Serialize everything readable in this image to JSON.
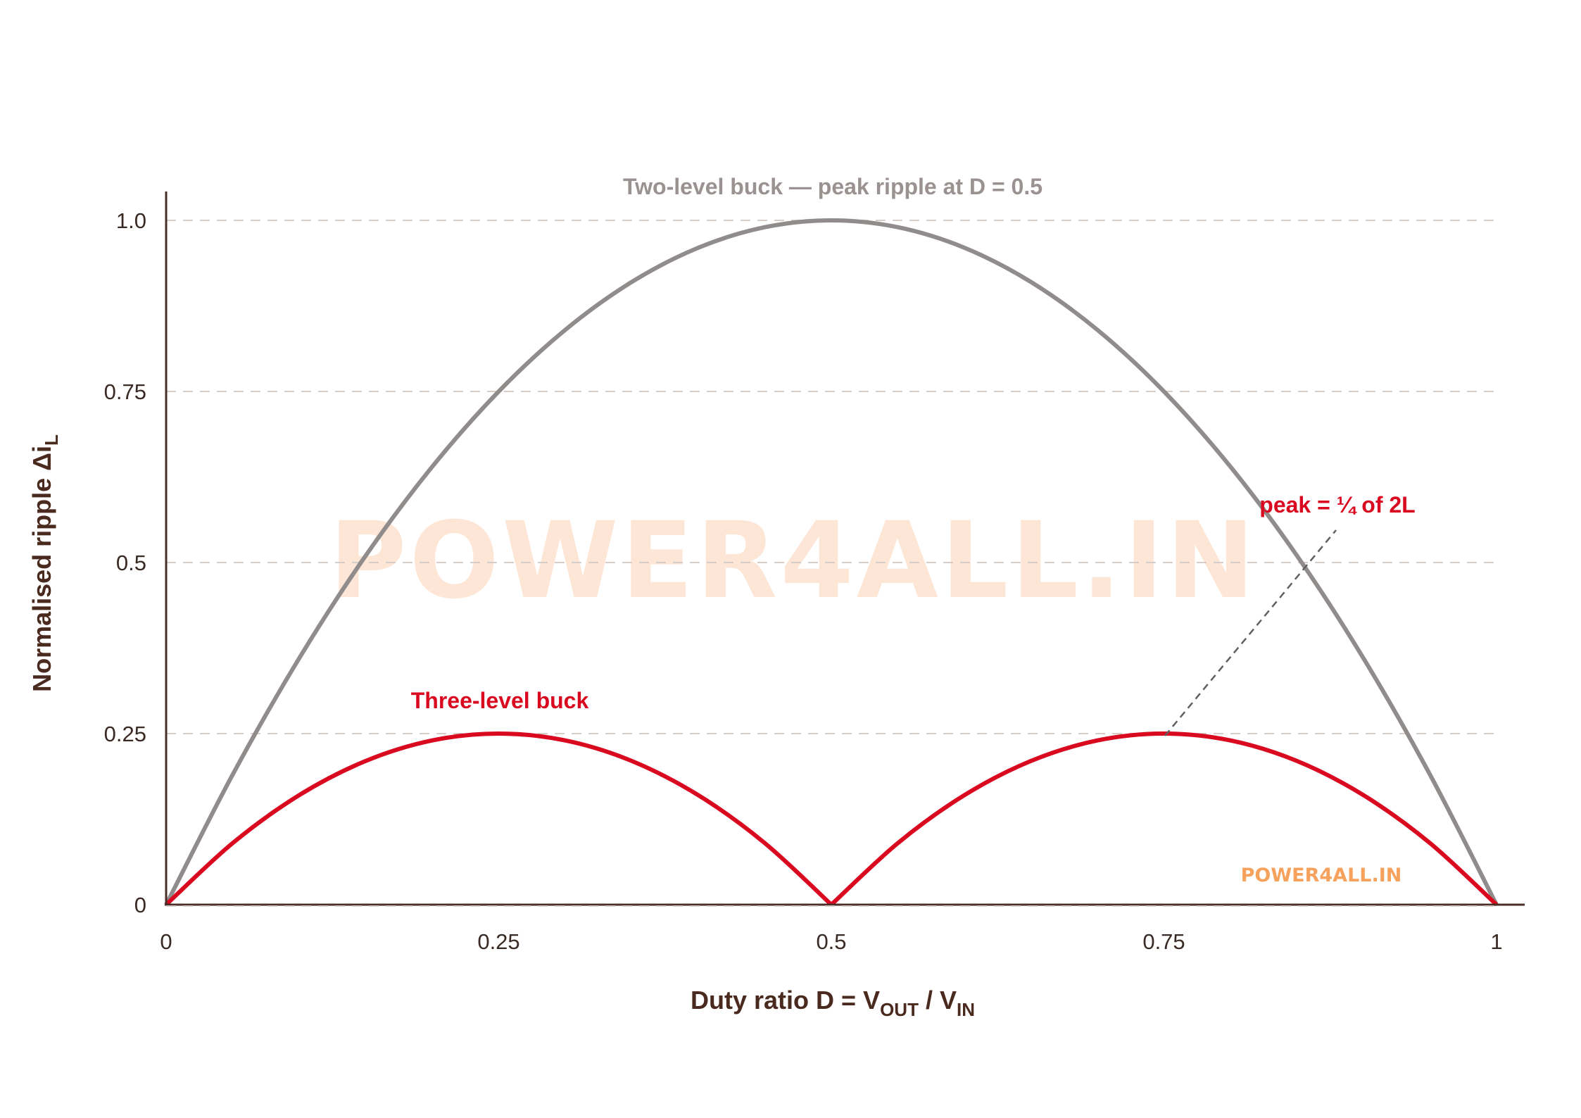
{
  "chart_data": {
    "type": "line",
    "xlabel_main": "Duty ratio D = V",
    "xlabel_sub1": "OUT",
    "xlabel_mid": " / V",
    "xlabel_sub2": "IN",
    "ylabel_main": "Normalised ripple Δi",
    "ylabel_sub": "L",
    "xlim": [
      0,
      1
    ],
    "ylim": [
      0,
      1
    ],
    "x_ticks": [
      0,
      0.25,
      0.5,
      0.75,
      1
    ],
    "x_tick_labels": [
      "0",
      "0.25",
      "0.5",
      "0.75",
      "1"
    ],
    "y_ticks": [
      0,
      0.25,
      0.5,
      0.75,
      1.0
    ],
    "y_tick_labels": [
      "0",
      "0.25",
      "0.5",
      "0.75",
      "1.0"
    ],
    "grid": "horizontal dashed",
    "series": [
      {
        "name": "Two-level buck",
        "color": "#8f8c8b",
        "x": [
          0,
          0.05,
          0.1,
          0.15,
          0.2,
          0.25,
          0.3,
          0.35,
          0.4,
          0.45,
          0.5,
          0.55,
          0.6,
          0.65,
          0.7,
          0.75,
          0.8,
          0.85,
          0.9,
          0.95,
          1
        ],
        "y": [
          0,
          0.19,
          0.36,
          0.51,
          0.64,
          0.75,
          0.84,
          0.91,
          0.96,
          0.99,
          1.0,
          0.99,
          0.96,
          0.91,
          0.84,
          0.75,
          0.64,
          0.51,
          0.36,
          0.19,
          0
        ]
      },
      {
        "name": "Three-level buck",
        "color": "#d9091f",
        "x": [
          0,
          0.05,
          0.1,
          0.15,
          0.2,
          0.25,
          0.3,
          0.35,
          0.4,
          0.45,
          0.5,
          0.55,
          0.6,
          0.65,
          0.7,
          0.75,
          0.8,
          0.85,
          0.9,
          0.95,
          1
        ],
        "y": [
          0,
          0.09,
          0.16,
          0.21,
          0.24,
          0.25,
          0.24,
          0.21,
          0.16,
          0.09,
          0,
          0.09,
          0.16,
          0.21,
          0.24,
          0.25,
          0.24,
          0.21,
          0.16,
          0.09,
          0
        ]
      }
    ],
    "annotations": {
      "two_level_label": "Two-level buck — peak ripple at D = 0.5",
      "three_level_label": "Three-level buck",
      "peak_note": "peak = ¼ of 2L"
    }
  },
  "watermark": {
    "large": "POWER4ALL.IN",
    "small": "POWER4ALL.IN"
  },
  "colors": {
    "axis": "#4a2f28",
    "grid": "#d6cdc8",
    "two_level": "#8f8c8b",
    "three_level": "#d9091f",
    "watermark_large": "#fde6d6",
    "watermark_small": "#f7a25c",
    "leader": "#606060"
  }
}
